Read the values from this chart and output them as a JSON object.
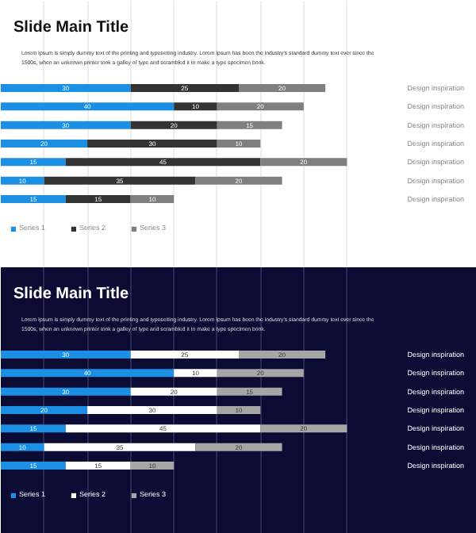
{
  "chart_data": [
    {
      "type": "bar",
      "orientation": "horizontal",
      "stacked": true,
      "data_labels": true,
      "title": "Slide Main Title",
      "subtitle": "Lorem Ipsum is simply dummy text of the printing and typesetting industry. Lorem Ipsum has been the industry's standard dummy text ever since the 1500s, when an unknown printer took a galley of type and scrambled it to make a type specimen book.",
      "categories": [
        "Design inspiration",
        "Design inspiration",
        "Design inspiration",
        "Design inspiration",
        "Design inspiration",
        "Design inspiration",
        "Design inspiration"
      ],
      "xlim": [
        0,
        110
      ],
      "xticks": [
        {
          "value": 10,
          "label": null
        },
        {
          "value": 20,
          "label": null
        },
        {
          "value": 30,
          "label": null
        },
        {
          "value": 40,
          "label": null
        },
        {
          "value": 50,
          "label": null
        },
        {
          "value": 60,
          "label": null
        },
        {
          "value": 70,
          "label": null
        },
        {
          "value": 80,
          "label": null
        }
      ],
      "grid": "x",
      "legend": "bottom",
      "series": [
        {
          "name": "Series 1",
          "color": "#1a8fe3",
          "values": [
            30,
            40,
            30,
            20,
            15,
            10,
            15
          ]
        },
        {
          "name": "Series 2",
          "color": "#333333",
          "values": [
            25,
            10,
            20,
            30,
            45,
            35,
            15
          ]
        },
        {
          "name": "Series 3",
          "color": "#7f7f7f",
          "values": [
            20,
            20,
            15,
            10,
            20,
            20,
            10
          ]
        }
      ]
    },
    {
      "type": "bar",
      "orientation": "horizontal",
      "stacked": true,
      "data_labels": true,
      "title": "Slide Main Title",
      "subtitle": "Lorem Ipsum is simply dummy text of the printing and typesetting industry. Lorem Ipsum has been the industry's standard dummy text ever since the 1500s, when an unknown printer took a galley of type and scrambled it to make a type specimen book.",
      "categories": [
        "Design inspiration",
        "Design inspiration",
        "Design inspiration",
        "Design inspiration",
        "Design inspiration",
        "Design inspiration",
        "Design inspiration"
      ],
      "xlim": [
        0,
        110
      ],
      "xticks": [
        {
          "value": 10,
          "label": null
        },
        {
          "value": 20,
          "label": null
        },
        {
          "value": 30,
          "label": null
        },
        {
          "value": 40,
          "label": null
        },
        {
          "value": 50,
          "label": null
        },
        {
          "value": 60,
          "label": null
        },
        {
          "value": 70,
          "label": null
        },
        {
          "value": 80,
          "label": null
        }
      ],
      "grid": "x",
      "legend": "bottom",
      "series": [
        {
          "name": "Series 1",
          "color": "#1a8fe3",
          "values": [
            30,
            40,
            30,
            20,
            15,
            10,
            15
          ]
        },
        {
          "name": "Series 2",
          "color": "#ffffff",
          "values": [
            25,
            10,
            20,
            30,
            45,
            35,
            15
          ]
        },
        {
          "name": "Series 3",
          "color": "#a6a6a6",
          "values": [
            20,
            20,
            15,
            10,
            20,
            20,
            10
          ]
        }
      ]
    }
  ]
}
